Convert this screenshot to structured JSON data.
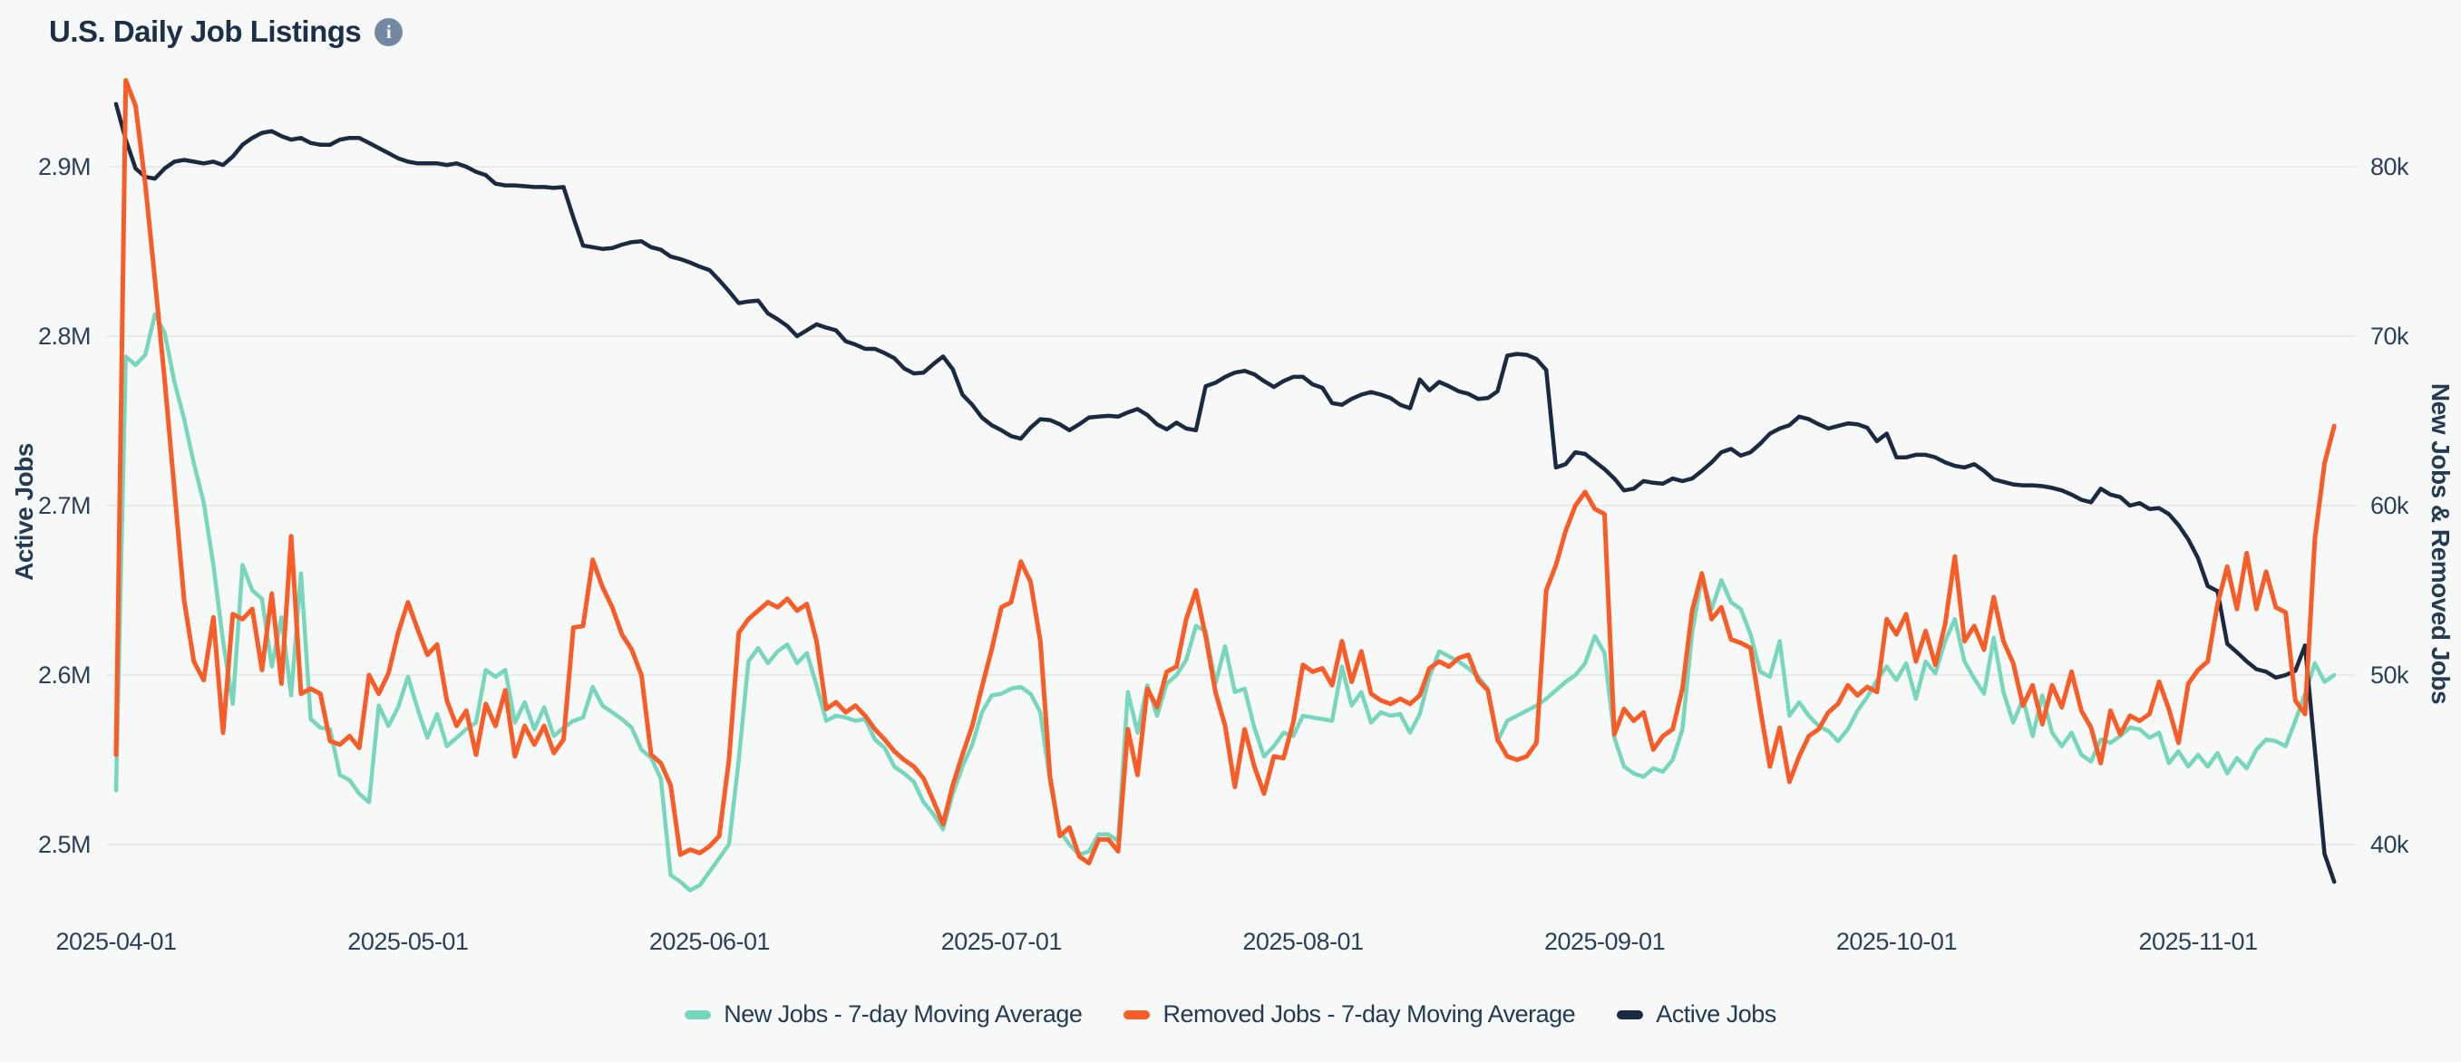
{
  "header": {
    "title": "U.S. Daily Job Listings",
    "info_icon": "i"
  },
  "colors": {
    "background": "#f7f8f8",
    "gridline": "#e9e9e9",
    "text": "#2d4059",
    "title_text": "#1d2f49",
    "info_icon_bg": "#7288a3",
    "new_jobs": "#76d7bd",
    "removed_jobs": "#fa5c28",
    "active_jobs": "#1b2a41"
  },
  "chart_data": {
    "type": "line",
    "title": "U.S. Daily Job Listings",
    "grid": true,
    "legend_position": "bottom-center",
    "start_date": "2025-04-01",
    "frequency": "daily",
    "x_ticks": [
      {
        "label": "2025-04-01",
        "day": 0
      },
      {
        "label": "2025-05-01",
        "day": 30
      },
      {
        "label": "2025-06-01",
        "day": 61
      },
      {
        "label": "2025-07-01",
        "day": 91
      },
      {
        "label": "2025-08-01",
        "day": 122
      },
      {
        "label": "2025-09-01",
        "day": 153
      },
      {
        "label": "2025-10-01",
        "day": 183
      },
      {
        "label": "2025-11-01",
        "day": 214
      }
    ],
    "left_axis": {
      "title": "Active Jobs",
      "unit": "M",
      "ticks": [
        {
          "value": 2.9,
          "label": "2.9M"
        },
        {
          "value": 2.8,
          "label": "2.8M"
        },
        {
          "value": 2.7,
          "label": "2.7M"
        },
        {
          "value": 2.6,
          "label": "2.6M"
        },
        {
          "value": 2.5,
          "label": "2.5M"
        }
      ]
    },
    "right_axis": {
      "title": "New Jobs & Removed Jobs",
      "unit": "k",
      "ticks": [
        {
          "value": 80,
          "label": "80k"
        },
        {
          "value": 70,
          "label": "70k"
        },
        {
          "value": 60,
          "label": "60k"
        },
        {
          "value": 50,
          "label": "50k"
        },
        {
          "value": 40,
          "label": "40k"
        }
      ]
    },
    "series": [
      {
        "name": "New Jobs - 7-day Moving Average",
        "id": "new-jobs",
        "axis": "right",
        "unit": "k",
        "values": [
          43.2,
          68.8,
          68.3,
          68.9,
          71.3,
          70.2,
          67.3,
          65.1,
          62.5,
          60.2,
          56.5,
          52.0,
          48.3,
          56.5,
          55.0,
          54.5,
          50.5,
          53.4,
          48.8,
          56.0,
          47.4,
          46.9,
          46.8,
          44.1,
          43.8,
          43.0,
          42.5,
          48.2,
          47.0,
          48.1,
          49.9,
          48.0,
          46.3,
          47.7,
          45.8,
          46.3,
          46.8,
          47.2,
          50.3,
          49.9,
          50.3,
          47.2,
          48.4,
          46.8,
          48.1,
          46.4,
          46.9,
          47.3,
          47.5,
          49.3,
          48.2,
          47.8,
          47.4,
          46.9,
          45.6,
          45.1,
          43.9,
          38.2,
          37.8,
          37.3,
          37.6,
          38.4,
          39.2,
          40.0,
          45.0,
          50.8,
          51.6,
          50.7,
          51.4,
          51.8,
          50.7,
          51.3,
          49.4,
          47.3,
          47.6,
          47.5,
          47.3,
          47.4,
          46.2,
          45.7,
          44.6,
          44.2,
          43.7,
          42.5,
          41.8,
          40.9,
          43.0,
          44.6,
          45.9,
          47.8,
          48.8,
          48.9,
          49.2,
          49.3,
          48.9,
          47.8,
          43.7,
          40.8,
          40.0,
          39.4,
          39.6,
          40.6,
          40.6,
          40.2,
          49.0,
          46.6,
          49.4,
          47.6,
          49.5,
          50.0,
          50.9,
          52.9,
          52.6,
          49.5,
          51.7,
          49.0,
          49.2,
          46.9,
          45.2,
          45.8,
          46.6,
          46.4,
          47.6,
          47.5,
          47.4,
          47.3,
          50.5,
          48.2,
          49.0,
          47.2,
          47.8,
          47.6,
          47.7,
          46.6,
          47.7,
          49.9,
          51.4,
          51.1,
          50.8,
          50.4,
          49.9,
          49.2,
          46.1,
          47.3,
          47.6,
          47.9,
          48.2,
          48.6,
          49.1,
          49.6,
          50.0,
          50.7,
          52.3,
          51.3,
          46.3,
          44.6,
          44.2,
          44.0,
          44.5,
          44.3,
          45.0,
          46.8,
          52.5,
          55.8,
          53.9,
          55.6,
          54.3,
          53.9,
          52.4,
          50.2,
          49.9,
          52.0,
          47.6,
          48.4,
          47.6,
          47.0,
          46.7,
          46.1,
          46.8,
          47.9,
          48.7,
          49.7,
          50.5,
          49.7,
          50.7,
          48.6,
          50.8,
          50.1,
          52.0,
          53.3,
          50.8,
          49.8,
          48.9,
          52.2,
          49.0,
          47.2,
          48.6,
          46.4,
          48.8,
          46.6,
          45.8,
          46.6,
          45.3,
          44.9,
          46.2,
          46.0,
          46.4,
          46.9,
          46.8,
          46.3,
          46.6,
          44.8,
          45.5,
          44.6,
          45.3,
          44.6,
          45.4,
          44.2,
          45.1,
          44.5,
          45.6,
          46.2,
          46.1,
          45.8,
          47.3,
          48.9,
          50.7,
          49.6,
          50.0
        ]
      },
      {
        "name": "Removed Jobs - 7-day Moving Average",
        "id": "removed-jobs",
        "axis": "right",
        "unit": "k",
        "values": [
          45.3,
          85.1,
          83.6,
          79.0,
          73.3,
          67.4,
          60.9,
          54.4,
          50.8,
          49.7,
          53.4,
          46.6,
          53.6,
          53.3,
          53.9,
          50.3,
          54.8,
          49.5,
          58.2,
          48.9,
          49.2,
          48.9,
          46.1,
          45.9,
          46.4,
          45.7,
          50.0,
          48.9,
          50.1,
          52.5,
          54.3,
          52.7,
          51.2,
          51.8,
          48.5,
          47.0,
          47.9,
          45.3,
          48.3,
          47.0,
          49.1,
          45.2,
          47.0,
          45.9,
          47.0,
          45.4,
          46.2,
          52.8,
          52.9,
          56.8,
          55.2,
          54.0,
          52.4,
          51.5,
          50.0,
          45.3,
          44.8,
          43.5,
          39.4,
          39.7,
          39.5,
          39.9,
          40.5,
          45.0,
          52.5,
          53.3,
          53.8,
          54.3,
          54.0,
          54.5,
          53.8,
          54.2,
          52.0,
          48.0,
          48.4,
          47.8,
          48.2,
          47.6,
          46.8,
          46.2,
          45.5,
          45.0,
          44.6,
          43.9,
          42.6,
          41.2,
          43.5,
          45.3,
          47.0,
          49.3,
          51.5,
          54.0,
          54.3,
          56.7,
          55.5,
          52.0,
          44.0,
          40.5,
          41.0,
          39.3,
          38.9,
          40.3,
          40.3,
          39.6,
          46.8,
          44.1,
          49.2,
          48.1,
          50.2,
          50.5,
          53.3,
          55.0,
          52.3,
          49.0,
          47.0,
          43.4,
          46.8,
          44.6,
          43.0,
          45.2,
          45.1,
          47.2,
          50.6,
          50.2,
          50.4,
          49.4,
          52.0,
          49.6,
          51.4,
          48.9,
          48.5,
          48.3,
          48.6,
          48.3,
          48.8,
          50.4,
          50.8,
          50.5,
          51.0,
          51.2,
          49.7,
          49.1,
          46.2,
          45.2,
          45.0,
          45.2,
          46.0,
          55.0,
          56.5,
          58.5,
          60.0,
          60.8,
          59.8,
          59.5,
          46.5,
          48.0,
          47.3,
          47.8,
          45.6,
          46.4,
          46.8,
          49.2,
          53.8,
          56.0,
          53.3,
          54.0,
          52.1,
          51.9,
          51.6,
          48.0,
          44.6,
          46.9,
          43.7,
          45.2,
          46.4,
          46.8,
          47.8,
          48.3,
          49.4,
          48.8,
          49.3,
          49.0,
          53.3,
          52.4,
          53.6,
          50.8,
          52.6,
          50.6,
          53.0,
          57.0,
          52.0,
          52.9,
          51.5,
          54.6,
          52.0,
          50.7,
          48.2,
          49.4,
          47.1,
          49.4,
          48.1,
          50.2,
          47.9,
          46.9,
          44.8,
          47.9,
          46.5,
          47.6,
          47.3,
          47.7,
          49.6,
          48.0,
          46.0,
          49.5,
          50.3,
          50.8,
          54.2,
          56.4,
          53.9,
          57.2,
          53.9,
          56.1,
          54.0,
          53.7,
          48.5,
          47.7,
          58.0,
          62.5,
          64.7
        ]
      },
      {
        "name": "Active Jobs",
        "id": "active-jobs",
        "axis": "left",
        "unit": "M",
        "values": [
          2.937,
          2.916,
          2.899,
          2.894,
          2.893,
          2.899,
          2.903,
          2.904,
          2.903,
          2.902,
          2.903,
          2.901,
          2.906,
          2.913,
          2.917,
          2.92,
          2.921,
          2.918,
          2.916,
          2.917,
          2.914,
          2.913,
          2.913,
          2.916,
          2.917,
          2.917,
          2.914,
          2.911,
          2.908,
          2.905,
          2.903,
          2.902,
          2.902,
          2.902,
          2.901,
          2.902,
          2.9,
          2.897,
          2.895,
          2.89,
          2.889,
          2.889,
          2.8885,
          2.888,
          2.888,
          2.8875,
          2.888,
          2.87,
          2.8535,
          2.8525,
          2.8515,
          2.852,
          2.854,
          2.8555,
          2.856,
          2.8525,
          2.851,
          2.847,
          2.8455,
          2.8435,
          2.841,
          2.839,
          2.833,
          2.8265,
          2.8195,
          2.8205,
          2.821,
          2.8135,
          2.81,
          2.806,
          2.8,
          2.8035,
          2.807,
          2.805,
          2.8035,
          2.797,
          2.795,
          2.7925,
          2.7925,
          2.79,
          2.787,
          2.781,
          2.778,
          2.7785,
          2.7835,
          2.788,
          2.7805,
          2.7655,
          2.7595,
          2.752,
          2.7475,
          2.7445,
          2.741,
          2.7395,
          2.746,
          2.751,
          2.7505,
          2.748,
          2.7445,
          2.748,
          2.752,
          2.7525,
          2.753,
          2.7525,
          2.755,
          2.757,
          2.7535,
          2.748,
          2.745,
          2.749,
          2.7455,
          2.7445,
          2.7705,
          2.7725,
          2.776,
          2.7785,
          2.7795,
          2.7775,
          2.7735,
          2.77,
          2.7735,
          2.776,
          2.776,
          2.7715,
          2.7695,
          2.7605,
          2.7595,
          2.763,
          2.7655,
          2.767,
          2.7655,
          2.7635,
          2.7595,
          2.7575,
          2.7745,
          2.768,
          2.773,
          2.7705,
          2.7675,
          2.766,
          2.763,
          2.7635,
          2.7675,
          2.7885,
          2.7895,
          2.789,
          2.7865,
          2.78,
          2.7225,
          2.7245,
          2.7315,
          2.7305,
          2.726,
          2.7215,
          2.716,
          2.709,
          2.71,
          2.7145,
          2.7135,
          2.713,
          2.716,
          2.7145,
          2.716,
          2.7205,
          2.7255,
          2.7315,
          2.7335,
          2.7295,
          2.7315,
          2.7365,
          2.7425,
          2.7455,
          2.7475,
          2.7525,
          2.751,
          2.748,
          2.7455,
          2.747,
          2.7485,
          2.748,
          2.746,
          2.738,
          2.7425,
          2.7285,
          2.7285,
          2.73,
          2.73,
          2.7285,
          2.7255,
          2.7235,
          2.7225,
          2.7245,
          2.7205,
          2.7155,
          2.714,
          2.7125,
          2.712,
          2.712,
          2.7115,
          2.7105,
          2.709,
          2.7065,
          2.7035,
          2.702,
          2.71,
          2.7065,
          2.705,
          2.7,
          2.7015,
          2.698,
          2.6985,
          2.695,
          2.6885,
          2.68,
          2.669,
          2.6525,
          2.6495,
          2.6185,
          2.6135,
          2.608,
          2.6035,
          2.602,
          2.5985,
          2.6,
          2.6025,
          2.6175,
          2.556,
          2.4945,
          2.478
        ]
      }
    ]
  },
  "legend": {
    "items": [
      {
        "label": "New Jobs - 7-day Moving Average",
        "series_id": "new-jobs"
      },
      {
        "label": "Removed Jobs - 7-day Moving Average",
        "series_id": "removed-jobs"
      },
      {
        "label": "Active Jobs",
        "series_id": "active-jobs"
      }
    ]
  }
}
